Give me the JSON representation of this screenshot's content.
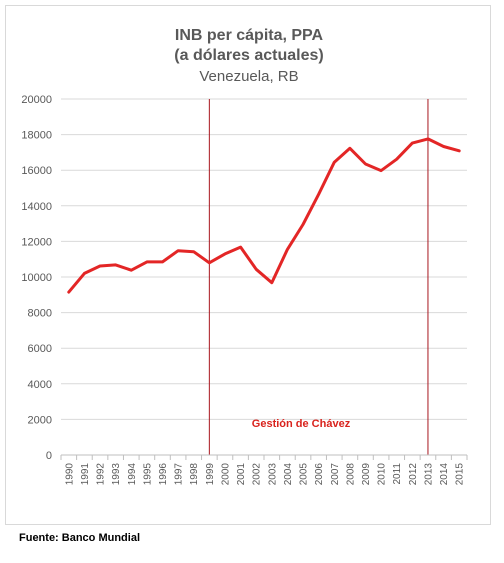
{
  "chart_data": {
    "type": "line",
    "title": [
      "INB per cápita, PPA",
      "(a dólares actuales)"
    ],
    "subtitle": "Venezuela, RB",
    "xlabel": "",
    "ylabel": "",
    "ylim": [
      0,
      20000
    ],
    "yticks": [
      0,
      2000,
      4000,
      6000,
      8000,
      10000,
      12000,
      14000,
      16000,
      18000,
      20000
    ],
    "categories": [
      "1990",
      "1991",
      "1992",
      "1993",
      "1994",
      "1995",
      "1996",
      "1997",
      "1998",
      "1999",
      "2000",
      "2001",
      "2002",
      "2003",
      "2004",
      "2005",
      "2006",
      "2007",
      "2008",
      "2009",
      "2010",
      "2011",
      "2012",
      "2013",
      "2014",
      "2015"
    ],
    "series": [
      {
        "values": [
          9150,
          10200,
          10620,
          10680,
          10380,
          10850,
          10850,
          11480,
          11420,
          10800,
          11300,
          11680,
          10430,
          9680,
          11550,
          12950,
          14650,
          16450,
          17230,
          16350,
          15980,
          16620,
          17520,
          17760,
          17330,
          17090
        ],
        "color": "#e32626"
      }
    ],
    "grid": true,
    "reference_lines": [
      {
        "x": "1999",
        "color": "#a8161e"
      },
      {
        "x": "2013",
        "color": "#a8161e"
      }
    ],
    "annotation": {
      "text": "Gestión de Chávez",
      "color": "#d9231d"
    }
  },
  "source": "Fuente:  Banco Mundial"
}
